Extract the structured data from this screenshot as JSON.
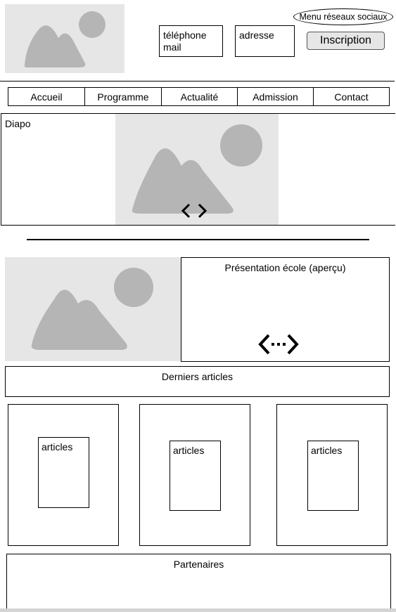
{
  "header": {
    "logo_icon": "image-placeholder-icon",
    "contact_lines": [
      "téléphone",
      "mail"
    ],
    "address_label": "adresse",
    "social_menu_label": "Menu réseaux sociaux",
    "signup_button_label": "Inscription"
  },
  "nav": {
    "items": [
      {
        "label": "Accueil"
      },
      {
        "label": "Programme"
      },
      {
        "label": "Actualité"
      },
      {
        "label": "Admission"
      },
      {
        "label": "Contact"
      }
    ]
  },
  "slider": {
    "label": "Diapo",
    "image_icon": "image-placeholder-icon",
    "arrows_icon": "chevrons-left-right-icon"
  },
  "presentation": {
    "image_icon": "image-placeholder-icon",
    "title": "Présentation école (aperçu)",
    "expand_icon": "dotted-chevrons-icon"
  },
  "articles_section": {
    "title": "Derniers articles",
    "cards": [
      {
        "label": "articles"
      },
      {
        "label": "articles"
      },
      {
        "label": "articles"
      }
    ]
  },
  "partners": {
    "title": "Partenaires"
  },
  "colors": {
    "placeholder_bg": "#e6e6e6",
    "placeholder_fg": "#b5b5b5",
    "button_bg": "#e6e6e6"
  }
}
